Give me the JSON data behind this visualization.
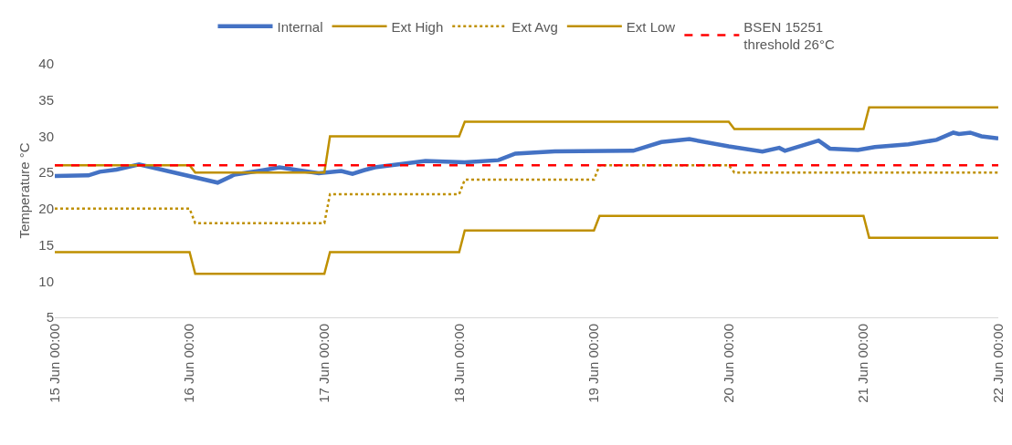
{
  "chart_data": {
    "type": "line",
    "ylabel": "Temperature °C",
    "ylim": [
      5,
      40
    ],
    "yticks": [
      5,
      10,
      15,
      20,
      25,
      30,
      35,
      40
    ],
    "xlim": [
      "--06-15T00:00",
      "--06-22T00:00"
    ],
    "xticks": [
      {
        "value": "--06-15T00:00",
        "label": "15 Jun 00:00"
      },
      {
        "value": "--06-16T00:00",
        "label": "16 Jun 00:00"
      },
      {
        "value": "--06-17T00:00",
        "label": "17 Jun 00:00"
      },
      {
        "value": "--06-18T00:00",
        "label": "18 Jun 00:00"
      },
      {
        "value": "--06-19T00:00",
        "label": "19 Jun 00:00"
      },
      {
        "value": "--06-20T00:00",
        "label": "20 Jun 00:00"
      },
      {
        "value": "--06-21T00:00",
        "label": "21 Jun 00:00"
      },
      {
        "value": "--06-22T00:00",
        "label": "22 Jun 00:00"
      }
    ],
    "grid": false,
    "legend": "top",
    "marker": "none",
    "series": [
      {
        "name": "Internal",
        "color": "#4472c4",
        "x": [
          "--06-15T00:00",
          "--06-15T06:00",
          "--06-15T08:00",
          "--06-15T11:00",
          "--06-15T15:00",
          "--06-15T19:00",
          "--06-16T05:00",
          "--06-16T08:00",
          "--06-16T13:00",
          "--06-16T16:00",
          "--06-16T23:00",
          "--06-17T03:00",
          "--06-17T05:00",
          "--06-17T07:00",
          "--06-17T09:00",
          "--06-17T18:00",
          "--06-18T01:00",
          "--06-18T07:00",
          "--06-18T10:00",
          "--06-18T17:00",
          "--06-19T07:00",
          "--06-19T12:00",
          "--06-19T17:00",
          "--06-20T00:00",
          "--06-20T06:00",
          "--06-20T09:00",
          "--06-20T10:00",
          "--06-20T16:00",
          "--06-20T18:00",
          "--06-20T23:00",
          "--06-21T02:00",
          "--06-21T08:00",
          "--06-21T13:00",
          "--06-21T16:00",
          "--06-21T17:00",
          "--06-21T19:00",
          "--06-21T21:00",
          "--06-22T00:00"
        ],
        "values": [
          24.5,
          24.6,
          25.1,
          25.4,
          26.1,
          25.4,
          23.6,
          24.7,
          25.3,
          25.7,
          24.9,
          25.2,
          24.8,
          25.3,
          25.7,
          26.6,
          26.4,
          26.7,
          27.6,
          27.9,
          28.0,
          29.2,
          29.6,
          28.6,
          27.9,
          28.4,
          28.0,
          29.4,
          28.3,
          28.1,
          28.5,
          28.9,
          29.5,
          30.5,
          30.3,
          30.5,
          30.0,
          29.7
        ]
      },
      {
        "name": "Ext High",
        "color": "#bf9000",
        "x": [
          "--06-15T00:00",
          "--06-16T00:00",
          "--06-16T01:00",
          "--06-17T00:00",
          "--06-17T01:00",
          "--06-18T00:00",
          "--06-18T01:00",
          "--06-20T00:00",
          "--06-20T01:00",
          "--06-21T00:00",
          "--06-21T01:00",
          "--06-22T00:00"
        ],
        "values": [
          26,
          26,
          25,
          25,
          30,
          30,
          32,
          32,
          31,
          31,
          34,
          34
        ]
      },
      {
        "name": "Ext Avg",
        "color": "#bf9000",
        "line_style": "dotted",
        "x": [
          "--06-15T00:00",
          "--06-16T00:00",
          "--06-16T01:00",
          "--06-17T00:00",
          "--06-17T01:00",
          "--06-18T00:00",
          "--06-18T01:00",
          "--06-19T00:00",
          "--06-19T01:00",
          "--06-20T00:00",
          "--06-20T01:00",
          "--06-22T00:00"
        ],
        "values": [
          20,
          20,
          18,
          18,
          22,
          22,
          24,
          24,
          26,
          26,
          25,
          25
        ]
      },
      {
        "name": "Ext Low",
        "color": "#bf9000",
        "x": [
          "--06-15T00:00",
          "--06-16T00:00",
          "--06-16T01:00",
          "--06-17T00:00",
          "--06-17T01:00",
          "--06-18T00:00",
          "--06-18T01:00",
          "--06-19T00:00",
          "--06-19T01:00",
          "--06-21T00:00",
          "--06-21T01:00",
          "--06-22T00:00"
        ],
        "values": [
          14,
          14,
          11,
          11,
          14,
          14,
          17,
          17,
          19,
          19,
          16,
          16
        ]
      }
    ],
    "ref_lines": [
      {
        "axis": "y",
        "value": 26,
        "label": "BSEN 15251\nthreshold 26°C",
        "color": "#ff0000",
        "line_style": "dashed"
      }
    ]
  }
}
